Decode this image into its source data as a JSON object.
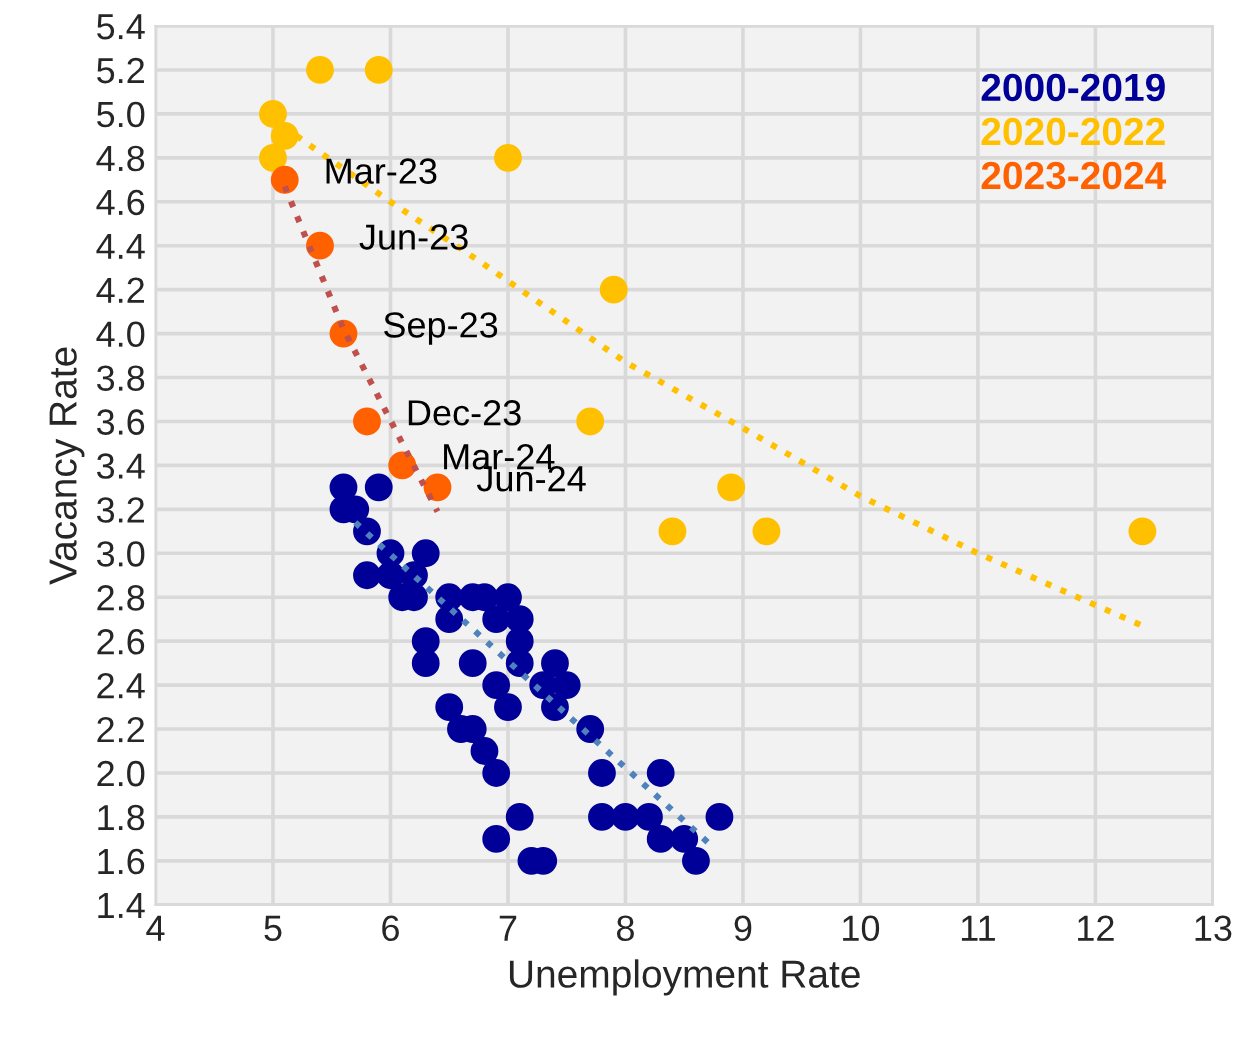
{
  "chart_data": {
    "type": "scatter",
    "xlabel": "Unemployment Rate",
    "ylabel": "Vacancy Rate",
    "xlim": [
      4,
      13
    ],
    "xticks": [
      4,
      5,
      6,
      7,
      8,
      9,
      10,
      11,
      12,
      13
    ],
    "ylim": [
      1.4,
      5.4
    ],
    "yticks": [
      1.4,
      1.6,
      1.8,
      {
        "value": 2,
        "label": "2.0"
      },
      2.2,
      2.4,
      2.6,
      2.8,
      {
        "value": 3,
        "label": "3.0"
      },
      3.2,
      3.4,
      3.6,
      3.8,
      {
        "value": 4,
        "label": "4.0"
      },
      4.2,
      4.4,
      4.6,
      4.8,
      {
        "value": 5,
        "label": "5.0"
      },
      5.2,
      5.4
    ],
    "grid": true,
    "legend": "top right",
    "marker": "circle",
    "series": [
      {
        "name": "2000-2019",
        "color": "#000099",
        "x": [
          5.6,
          5.9,
          5.6,
          5.7,
          5.8,
          6.0,
          6.3,
          5.8,
          6.0,
          6.2,
          6.1,
          6.2,
          6.5,
          6.7,
          6.8,
          7.0,
          6.5,
          6.9,
          7.1,
          6.3,
          7.1,
          6.3,
          6.7,
          7.1,
          7.4,
          6.9,
          7.3,
          7.5,
          7.0,
          7.4,
          6.5,
          6.6,
          6.7,
          7.7,
          6.8,
          6.9,
          7.8,
          8.3,
          7.1,
          7.8,
          8.0,
          8.2,
          8.8,
          6.9,
          8.3,
          8.5,
          7.2,
          7.3,
          8.6
        ],
        "values": [
          3.3,
          3.3,
          3.2,
          3.2,
          3.1,
          3.0,
          3.0,
          2.9,
          2.9,
          2.9,
          2.8,
          2.8,
          2.8,
          2.8,
          2.8,
          2.8,
          2.7,
          2.7,
          2.7,
          2.6,
          2.6,
          2.5,
          2.5,
          2.5,
          2.5,
          2.4,
          2.4,
          2.4,
          2.3,
          2.3,
          2.3,
          2.2,
          2.2,
          2.2,
          2.1,
          2.0,
          2.0,
          2.0,
          1.8,
          1.8,
          1.8,
          1.8,
          1.8,
          1.7,
          1.7,
          1.7,
          1.6,
          1.6,
          1.6
        ]
      },
      {
        "name": "2020-2022",
        "color": "#ffc000",
        "x": [
          5.4,
          5.9,
          5.0,
          5.1,
          5.0,
          7.0,
          7.9,
          7.7,
          8.9,
          8.4,
          9.2,
          12.4
        ],
        "values": [
          5.2,
          5.2,
          5.0,
          4.9,
          4.8,
          4.8,
          4.2,
          3.6,
          3.3,
          3.1,
          3.1,
          3.1
        ]
      },
      {
        "name": "2023-2024",
        "color": "#ff6000",
        "x": [
          5.1,
          5.4,
          5.6,
          5.8,
          6.1,
          6.4
        ],
        "values": [
          4.7,
          4.4,
          4.0,
          3.6,
          3.4,
          3.3
        ]
      },
      {
        "type": "line",
        "line_style": "dotted",
        "marker": "none",
        "color": "#4f81bd",
        "x": [
          5.7,
          8.75
        ],
        "values": [
          3.14,
          1.66
        ]
      },
      {
        "type": "line",
        "line_style": "dotted",
        "marker": "none",
        "color": "#ffc000",
        "x": [
          5.2,
          6.0,
          6.7,
          8.0,
          9.0,
          10.0,
          11.0,
          12.4
        ],
        "values": [
          4.9,
          4.6,
          4.35,
          3.87,
          3.57,
          3.26,
          3.0,
          2.67
        ]
      },
      {
        "type": "line",
        "line_style": "dotted",
        "marker": "none",
        "color": "#c0504d",
        "x": [
          5.1,
          5.6,
          6.4
        ],
        "values": [
          4.67,
          4.02,
          3.19
        ]
      }
    ],
    "annotations": [
      {
        "text": "Mar-23",
        "x": 5.1,
        "y": 4.7
      },
      {
        "text": "Jun-23",
        "x": 5.4,
        "y": 4.4
      },
      {
        "text": "Sep-23",
        "x": 5.6,
        "y": 4.0
      },
      {
        "text": "Dec-23",
        "x": 5.8,
        "y": 3.6
      },
      {
        "text": "Mar-24",
        "x": 6.1,
        "y": 3.4
      },
      {
        "text": "Jun-24",
        "x": 6.4,
        "y": 3.3
      }
    ]
  }
}
